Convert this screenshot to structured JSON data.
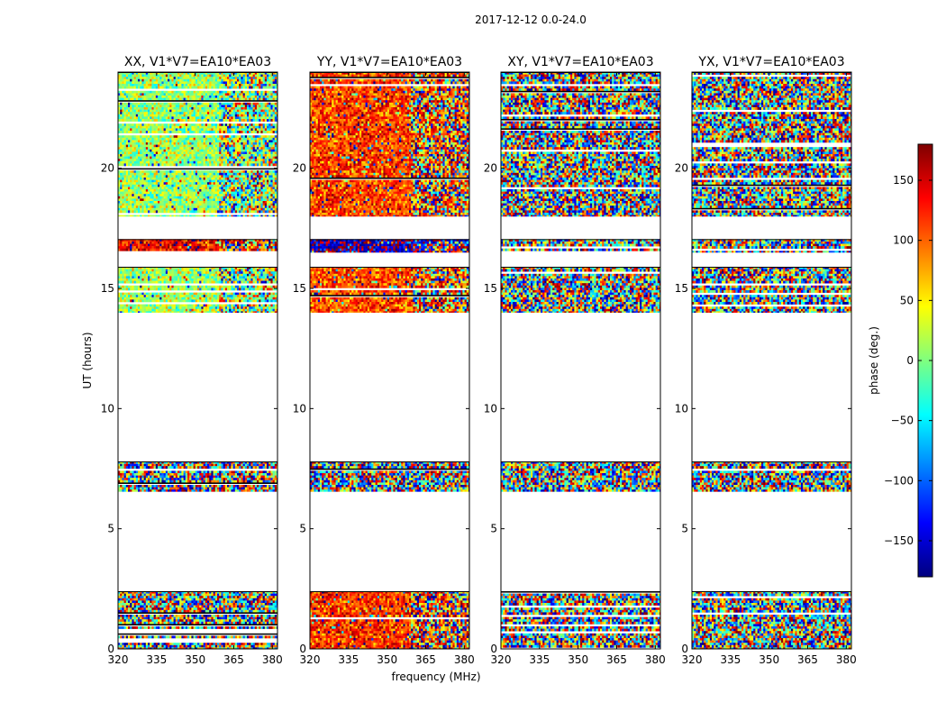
{
  "chart_data": {
    "type": "heatmap",
    "suptitle": "2017-12-12 0.0-24.0",
    "xlabel": "frequency (MHz)",
    "ylabel": "UT (hours)",
    "xlim": [
      320,
      382
    ],
    "ylim": [
      0,
      24
    ],
    "xticks": [
      320,
      335,
      350,
      365,
      380
    ],
    "yticks": [
      0,
      5,
      10,
      15,
      20
    ],
    "channel_break_mhz": 359,
    "colorbar": {
      "label": "phase (deg.)",
      "range": [
        -180,
        180
      ],
      "ticks": [
        150,
        100,
        50,
        0,
        -50,
        -100,
        -150
      ],
      "tick_labels": [
        "150",
        "100",
        "50",
        "0",
        "−50",
        "−100",
        "−150"
      ],
      "colormap": [
        "#00007f",
        "#0000ff",
        "#007fff",
        "#00ffff",
        "#7fff7f",
        "#ffff00",
        "#ff7f00",
        "#ff0000",
        "#7f0000"
      ]
    },
    "data_time_ranges_hours": [
      [
        0.0,
        2.4
      ],
      [
        6.55,
        7.8
      ],
      [
        14.0,
        15.9
      ],
      [
        16.5,
        17.05
      ],
      [
        18.0,
        24.0
      ]
    ],
    "panels": [
      {
        "name": "xx",
        "title": "XX, V1*V7=EA10*EA03",
        "mean_phase_by_range_deg": [
          null,
          null,
          15,
          140,
          10
        ],
        "mean_phase_second_band_deg": [
          null,
          null,
          null,
          120,
          null
        ]
      },
      {
        "name": "yy",
        "title": "YY, V1*V7=EA10*EA03",
        "mean_phase_by_range_deg": [
          120,
          null,
          110,
          -165,
          115
        ],
        "mean_phase_second_band_deg": [
          null,
          null,
          null,
          -160,
          null
        ]
      },
      {
        "name": "xy",
        "title": "XY, V1*V7=EA10*EA03",
        "mean_phase_by_range_deg": [
          null,
          null,
          null,
          null,
          null
        ],
        "mean_phase_second_band_deg": [
          null,
          null,
          null,
          null,
          null
        ]
      },
      {
        "name": "yx",
        "title": "YX, V1*V7=EA10*EA03",
        "mean_phase_by_range_deg": [
          null,
          null,
          null,
          null,
          null
        ],
        "mean_phase_second_band_deg": [
          null,
          null,
          null,
          null,
          null
        ]
      }
    ]
  }
}
